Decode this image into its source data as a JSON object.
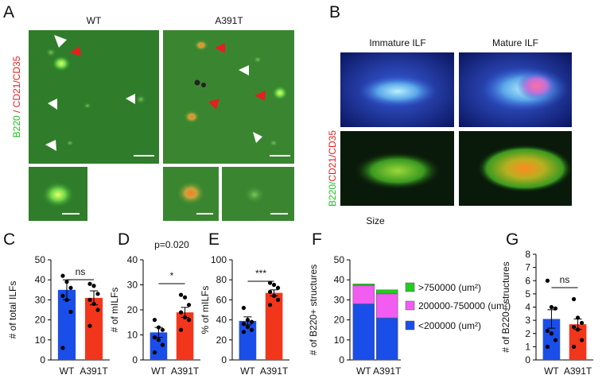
{
  "panel_labels": [
    "A",
    "B",
    "C",
    "D",
    "E",
    "F",
    "G"
  ],
  "panel_a": {
    "columns": [
      "WT",
      "A391T"
    ],
    "stain_green": "B220",
    "stain_red": " / CD21/CD35"
  },
  "panel_b": {
    "columns": [
      "Immature ILF",
      "Mature ILF"
    ],
    "stain_green": "B220/",
    "stain_red": "CD21/CD35"
  },
  "chart_data": [
    {
      "type": "bar",
      "ylabel": "# of total ILFs",
      "significance": "ns",
      "categories": [
        "WT",
        "A391T"
      ],
      "values": [
        35,
        31
      ],
      "errors": [
        5,
        3.5
      ],
      "colors": [
        "#1a4ee8",
        "#f2361c"
      ],
      "points": [
        [
          42,
          39,
          36,
          32,
          30,
          24,
          6
        ],
        [
          38,
          37,
          33,
          30,
          28,
          25,
          17
        ]
      ],
      "ylim": [
        0,
        50
      ],
      "yticks": [
        0,
        10,
        20,
        30,
        40,
        50
      ]
    },
    {
      "type": "bar",
      "ylabel": "# of mILFs",
      "significance": "*",
      "title": "p=0.020",
      "categories": [
        "WT",
        "A391T"
      ],
      "values": [
        11,
        19
      ],
      "errors": [
        2,
        2
      ],
      "colors": [
        "#1a4ee8",
        "#f2361c"
      ],
      "points": [
        [
          16,
          13,
          12,
          9,
          8,
          6,
          3
        ],
        [
          26,
          25,
          22,
          19,
          17,
          16,
          12
        ]
      ],
      "ylim": [
        0,
        40
      ],
      "yticks": [
        0,
        10,
        20,
        30,
        40
      ]
    },
    {
      "type": "bar",
      "ylabel": "% of mILFs",
      "significance": "***",
      "categories": [
        "WT",
        "A391T"
      ],
      "values": [
        39,
        67
      ],
      "errors": [
        4,
        3
      ],
      "colors": [
        "#1a4ee8",
        "#f2361c"
      ],
      "points": [
        [
          52,
          40,
          38,
          36,
          33,
          30,
          28
        ],
        [
          77,
          75,
          72,
          68,
          64,
          60,
          55
        ]
      ],
      "ylim": [
        0,
        100
      ],
      "yticks": [
        0,
        20,
        40,
        60,
        80,
        100
      ]
    },
    {
      "type": "stacked_bar",
      "ylabel": "# of B220+ structures",
      "title": "Size",
      "categories": [
        "WT",
        "A391T"
      ],
      "series": [
        {
          "name": "<200000 (um²)",
          "color": "#1a4ee8",
          "values": [
            28,
            21
          ]
        },
        {
          "name": "200000-750000 (um²)",
          "color": "#f25cf0",
          "values": [
            9,
            12
          ]
        },
        {
          "name": ">750000 (um²)",
          "color": "#22cc22",
          "values": [
            1,
            2
          ]
        }
      ],
      "ylim": [
        0,
        50
      ],
      "yticks": [
        0,
        10,
        20,
        30,
        40,
        50
      ]
    },
    {
      "type": "bar",
      "ylabel": "# of B220+ structures",
      "significance": "ns",
      "categories": [
        "WT",
        "A391T"
      ],
      "values": [
        3.1,
        2.7
      ],
      "errors": [
        0.7,
        0.4
      ],
      "colors": [
        "#1a4ee8",
        "#f2361c"
      ],
      "points": [
        [
          6,
          4,
          3.9,
          2.2,
          2,
          1.5,
          1
        ],
        [
          4.6,
          3.2,
          2.8,
          2.5,
          2.3,
          1.5,
          1
        ]
      ],
      "ylim": [
        0,
        8
      ],
      "yticks": [
        0,
        1,
        2,
        3,
        4,
        5,
        6,
        7,
        8
      ]
    }
  ]
}
